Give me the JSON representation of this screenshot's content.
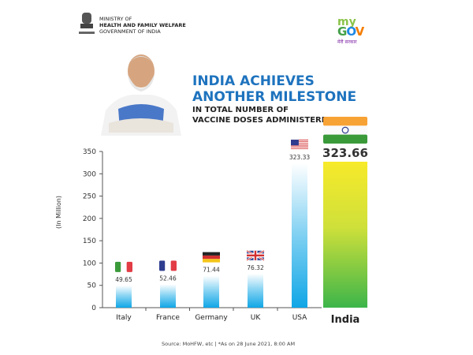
{
  "header": {
    "ministry_line1": "MINISTRY OF",
    "ministry_line2": "HEALTH AND FAMILY WELFARE",
    "ministry_line3": "GOVERNMENT OF INDIA",
    "mygov_my": "my",
    "mygov_gov": "GOV",
    "mygov_hindi": "मेरी सरकार"
  },
  "title": {
    "line1": "INDIA ACHIEVES",
    "line2": "ANOTHER MILESTONE",
    "line3": "IN TOTAL NUMBER OF",
    "line4": "VACCINE DOSES ADMINISTERED"
  },
  "footer": "Source: MoHFW, etc   |   *As on 28 June 2021, 8:00 AM",
  "colors": {
    "title": "#1e73be",
    "bar": "#29aae2",
    "india_top": "#f5e52a",
    "india_bottom": "#3cb54a"
  },
  "chart_data": {
    "type": "bar",
    "categories": [
      "Italy",
      "France",
      "Germany",
      "UK",
      "USA",
      "India"
    ],
    "values": [
      49.65,
      52.46,
      71.44,
      76.32,
      323.33,
      323.66
    ],
    "value_labels": [
      "49.65",
      "52.46",
      "71.44",
      "76.32",
      "323.33",
      "323.66"
    ],
    "flags": [
      "italy-flag",
      "france-flag",
      "germany-flag",
      "uk-flag",
      "usa-flag",
      "india-flag"
    ],
    "ylabel": "(In Million)",
    "ylim": [
      0,
      350
    ],
    "yticks": [
      "0",
      "50",
      "100",
      "150",
      "200",
      "250",
      "300",
      "350"
    ],
    "grid": false
  }
}
